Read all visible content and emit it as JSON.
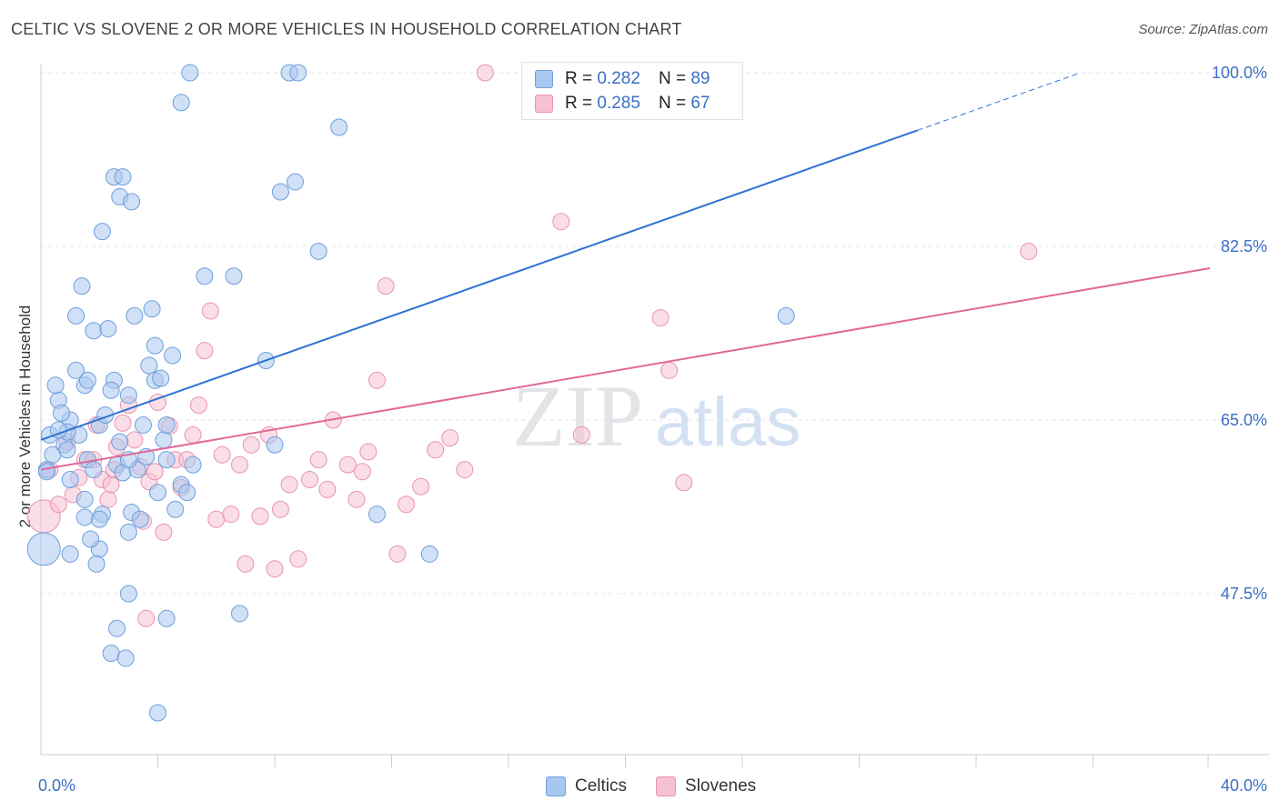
{
  "title": "CELTIC VS SLOVENE 2 OR MORE VEHICLES IN HOUSEHOLD CORRELATION CHART",
  "source": "Source: ZipAtlas.com",
  "watermark": {
    "zip": "ZIP",
    "atlas": "atlas"
  },
  "legend_top": {
    "celtics": {
      "r_label": "R =",
      "r_value": "0.282",
      "n_label": "N =",
      "n_value": "89"
    },
    "slovenes": {
      "r_label": "R =",
      "r_value": "0.285",
      "n_label": "N =",
      "n_value": "67"
    }
  },
  "legend_bottom": {
    "celtics": "Celtics",
    "slovenes": "Slovenes"
  },
  "chart_data": {
    "type": "scatter",
    "title": "CELTIC VS SLOVENE 2 OR MORE VEHICLES IN HOUSEHOLD CORRELATION CHART",
    "xlabel": "",
    "ylabel": "2 or more Vehicles in Household",
    "xlim": [
      0,
      40
    ],
    "ylim": [
      32.5,
      102.5
    ],
    "x_tick_labels": [
      {
        "value": 0,
        "label": "0.0%"
      },
      {
        "value": 40,
        "label": "40.0%"
      }
    ],
    "x_minor_ticks": [
      4,
      8,
      12,
      16,
      20,
      24,
      28,
      32,
      36,
      40
    ],
    "y_tick_labels": [
      {
        "value": 47.5,
        "label": "47.5%"
      },
      {
        "value": 65.0,
        "label": "65.0%"
      },
      {
        "value": 82.5,
        "label": "82.5%"
      },
      {
        "value": 100.0,
        "label": "100.0%"
      }
    ],
    "grid": true,
    "legend_position": "top-center",
    "colors": {
      "celtics_fill": "#a9c7ee",
      "celtics_stroke": "#6d9fdc",
      "celtics_line": "#2d72d2",
      "slovenes_fill": "#f6c1d2",
      "slovenes_stroke": "#e993b2",
      "slovenes_line": "#e0689a"
    },
    "series": [
      {
        "name": "Celtics",
        "trend": {
          "x0": 0.0,
          "y0": 63.0,
          "x_solid_end": 30.0,
          "x_dash_end": 35.5
        },
        "points": [
          [
            0.2,
            60.0,
            1
          ],
          [
            0.4,
            61.5,
            1
          ],
          [
            0.6,
            67.0,
            1
          ],
          [
            0.8,
            62.5,
            1
          ],
          [
            1.0,
            65.0,
            1
          ],
          [
            1.0,
            59.0,
            1
          ],
          [
            1.2,
            70.0,
            1
          ],
          [
            1.3,
            63.5,
            1
          ],
          [
            1.5,
            57.0,
            1
          ],
          [
            1.5,
            68.5,
            1
          ],
          [
            1.8,
            74.0,
            1
          ],
          [
            1.6,
            61.0,
            1
          ],
          [
            2.0,
            64.5,
            1
          ],
          [
            2.0,
            52.0,
            1
          ],
          [
            2.1,
            55.5,
            1
          ],
          [
            2.2,
            65.5,
            1
          ],
          [
            2.4,
            41.5,
            1
          ],
          [
            2.5,
            69.0,
            1
          ],
          [
            2.6,
            60.5,
            1
          ],
          [
            2.7,
            62.8,
            1
          ],
          [
            2.8,
            59.7,
            1
          ],
          [
            2.9,
            41.0,
            1
          ],
          [
            3.0,
            53.7,
            1
          ],
          [
            3.0,
            47.5,
            1
          ],
          [
            3.2,
            75.5,
            1
          ],
          [
            3.3,
            60.0,
            1
          ],
          [
            3.5,
            64.5,
            1
          ],
          [
            3.6,
            61.3,
            1
          ],
          [
            3.7,
            70.5,
            1
          ],
          [
            3.8,
            76.2,
            1
          ],
          [
            3.9,
            69.0,
            1
          ],
          [
            4.0,
            35.5,
            1
          ],
          [
            4.0,
            57.7,
            1
          ],
          [
            4.2,
            63.0,
            1
          ],
          [
            4.3,
            45.0,
            1
          ],
          [
            4.3,
            61.0,
            1
          ],
          [
            0.2,
            59.8,
            1
          ],
          [
            0.3,
            63.5,
            1
          ],
          [
            0.5,
            68.5,
            1
          ],
          [
            0.7,
            65.7,
            1
          ],
          [
            0.9,
            63.8,
            1
          ],
          [
            1.2,
            75.5,
            1
          ],
          [
            1.4,
            78.5,
            1
          ],
          [
            1.7,
            53.0,
            1
          ],
          [
            1.9,
            50.5,
            1
          ],
          [
            2.3,
            74.2,
            1
          ],
          [
            2.6,
            44.0,
            1
          ],
          [
            3.0,
            61.0,
            1
          ],
          [
            3.1,
            55.7,
            1
          ],
          [
            3.4,
            55.0,
            1
          ],
          [
            3.9,
            72.5,
            1
          ],
          [
            4.1,
            69.2,
            1
          ],
          [
            4.3,
            64.5,
            1
          ],
          [
            4.5,
            71.5,
            1
          ],
          [
            4.6,
            56.0,
            1
          ],
          [
            4.8,
            58.5,
            1
          ],
          [
            5.0,
            57.7,
            1
          ],
          [
            5.2,
            60.5,
            1
          ],
          [
            4.8,
            97.0,
            1
          ],
          [
            5.1,
            100.0,
            1
          ],
          [
            2.5,
            89.5,
            1
          ],
          [
            2.7,
            87.5,
            1
          ],
          [
            2.8,
            89.5,
            1
          ],
          [
            3.1,
            87.0,
            1
          ],
          [
            2.1,
            84.0,
            1
          ],
          [
            5.6,
            79.5,
            1
          ],
          [
            6.6,
            79.5,
            1
          ],
          [
            6.8,
            45.5,
            1
          ],
          [
            7.7,
            71.0,
            1
          ],
          [
            8.2,
            88.0,
            1
          ],
          [
            8.5,
            100.0,
            1
          ],
          [
            8.8,
            100.0,
            1
          ],
          [
            8.7,
            89.0,
            1
          ],
          [
            9.5,
            82.0,
            1
          ],
          [
            10.2,
            94.5,
            1
          ],
          [
            11.5,
            55.5,
            1
          ],
          [
            13.3,
            51.5,
            1
          ],
          [
            25.5,
            75.5,
            1
          ],
          [
            8.0,
            62.5,
            1
          ],
          [
            1.0,
            51.5,
            1
          ],
          [
            0.6,
            64.0,
            1
          ],
          [
            1.6,
            69.0,
            1
          ],
          [
            2.0,
            55.0,
            1
          ],
          [
            0.9,
            62.0,
            1
          ],
          [
            1.8,
            60.0,
            1
          ],
          [
            2.4,
            68.0,
            1
          ],
          [
            1.5,
            55.2,
            1
          ],
          [
            0.1,
            52.0,
            2
          ],
          [
            3.0,
            67.5,
            1
          ]
        ]
      },
      {
        "name": "Slovenes",
        "trend": {
          "x0": 0.0,
          "y0": 60.0,
          "x_solid_end": 40.0,
          "y_solid_end": 80.3
        },
        "points": [
          [
            0.1,
            55.3,
            2
          ],
          [
            0.3,
            60.0,
            1
          ],
          [
            0.6,
            56.5,
            1
          ],
          [
            0.9,
            62.8,
            1
          ],
          [
            1.1,
            57.5,
            1
          ],
          [
            1.3,
            59.2,
            1
          ],
          [
            1.5,
            61.0,
            1
          ],
          [
            1.8,
            61.0,
            1
          ],
          [
            1.9,
            64.5,
            1
          ],
          [
            2.1,
            59.0,
            1
          ],
          [
            2.3,
            57.0,
            1
          ],
          [
            2.4,
            58.5,
            1
          ],
          [
            2.5,
            60.0,
            1
          ],
          [
            2.6,
            62.3,
            1
          ],
          [
            2.8,
            64.7,
            1
          ],
          [
            3.0,
            66.5,
            1
          ],
          [
            3.2,
            63.0,
            1
          ],
          [
            3.4,
            60.3,
            1
          ],
          [
            3.5,
            54.8,
            1
          ],
          [
            3.6,
            45.0,
            1
          ],
          [
            3.7,
            58.8,
            1
          ],
          [
            3.9,
            59.8,
            1
          ],
          [
            4.0,
            66.8,
            1
          ],
          [
            4.2,
            53.7,
            1
          ],
          [
            4.4,
            64.4,
            1
          ],
          [
            4.6,
            61.0,
            1
          ],
          [
            4.8,
            58.2,
            1
          ],
          [
            5.0,
            61.0,
            1
          ],
          [
            5.2,
            63.5,
            1
          ],
          [
            5.4,
            66.5,
            1
          ],
          [
            5.6,
            72.0,
            1
          ],
          [
            5.8,
            76.0,
            1
          ],
          [
            6.0,
            55.0,
            1
          ],
          [
            6.2,
            61.5,
            1
          ],
          [
            6.5,
            55.5,
            1
          ],
          [
            6.8,
            60.5,
            1
          ],
          [
            7.0,
            50.5,
            1
          ],
          [
            7.2,
            62.5,
            1
          ],
          [
            7.5,
            55.3,
            1
          ],
          [
            7.8,
            63.5,
            1
          ],
          [
            8.0,
            50.0,
            1
          ],
          [
            8.2,
            56.0,
            1
          ],
          [
            8.5,
            58.5,
            1
          ],
          [
            8.8,
            51.0,
            1
          ],
          [
            9.2,
            59.0,
            1
          ],
          [
            9.5,
            61.0,
            1
          ],
          [
            9.8,
            58.0,
            1
          ],
          [
            10.0,
            65.0,
            1
          ],
          [
            10.5,
            60.5,
            1
          ],
          [
            10.8,
            57.0,
            1
          ],
          [
            11.0,
            59.8,
            1
          ],
          [
            11.2,
            61.8,
            1
          ],
          [
            11.5,
            69.0,
            1
          ],
          [
            11.8,
            78.5,
            1
          ],
          [
            12.2,
            51.5,
            1
          ],
          [
            12.5,
            56.5,
            1
          ],
          [
            13.0,
            58.3,
            1
          ],
          [
            13.5,
            62.0,
            1
          ],
          [
            14.0,
            63.2,
            1
          ],
          [
            14.5,
            60.0,
            1
          ],
          [
            15.2,
            100.0,
            1
          ],
          [
            17.8,
            85.0,
            1
          ],
          [
            18.5,
            63.5,
            1
          ],
          [
            21.2,
            75.3,
            1
          ],
          [
            21.5,
            70.0,
            1
          ],
          [
            22.0,
            58.7,
            1
          ],
          [
            33.8,
            82.0,
            1
          ]
        ]
      }
    ]
  }
}
